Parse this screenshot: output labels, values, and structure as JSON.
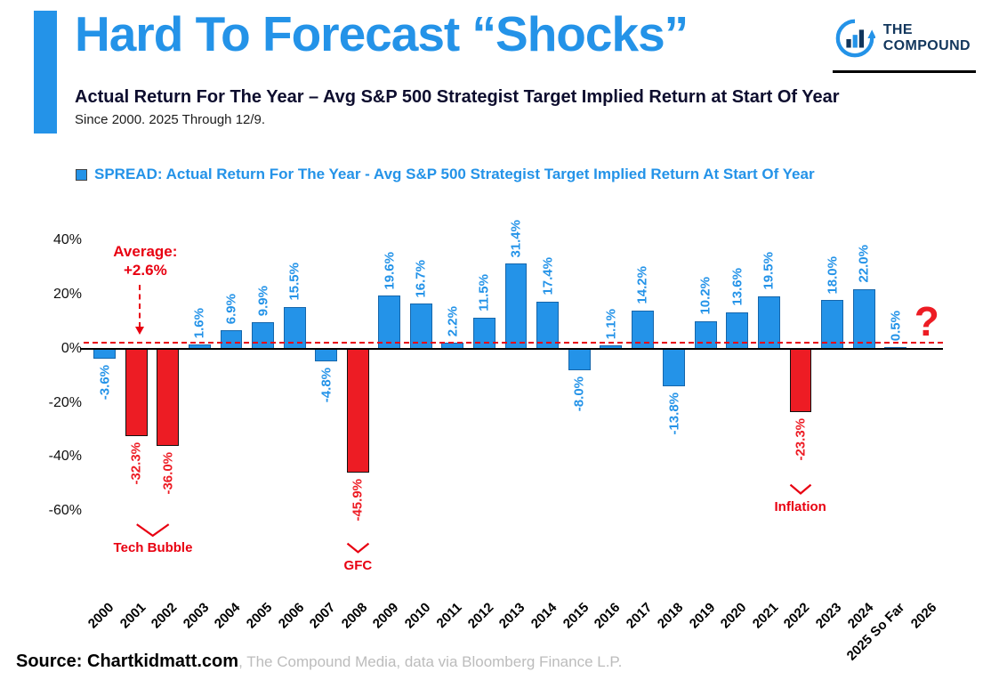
{
  "brand": {
    "blue": "#2493e8",
    "navy": "#12365c",
    "red": "#e80011",
    "barred": "#ed1c24",
    "gray": "#bcbcbc"
  },
  "header": {
    "title": "Hard To Forecast “Shocks”",
    "subtitle": "Actual Return For The Year – Avg S&P 500 Strategist Target Implied Return at Start Of Year",
    "subnote": "Since 2000. 2025 Through 12/9.",
    "logo": {
      "line1": "THE",
      "line2": "COMPOUND"
    }
  },
  "legend": {
    "label": "SPREAD: Actual Return For The Year - Avg S&P 500 Strategist Target Implied Return At Start Of Year"
  },
  "chart_data": {
    "type": "bar",
    "title": "SPREAD: Actual Return For The Year - Avg S&P 500 Strategist Target Implied Return At Start Of Year",
    "categories": [
      "2000",
      "2001",
      "2002",
      "2003",
      "2004",
      "2005",
      "2006",
      "2007",
      "2008",
      "2009",
      "2010",
      "2011",
      "2012",
      "2013",
      "2014",
      "2015",
      "2016",
      "2017",
      "2018",
      "2019",
      "2020",
      "2021",
      "2022",
      "2023",
      "2024",
      "2025 So Far",
      "2026"
    ],
    "values": [
      -3.6,
      -32.3,
      -36.0,
      1.6,
      6.9,
      9.9,
      15.5,
      -4.8,
      -45.9,
      19.6,
      16.7,
      2.2,
      11.5,
      31.4,
      17.4,
      -8.0,
      1.1,
      14.2,
      -13.8,
      10.2,
      13.6,
      19.5,
      -23.3,
      18.0,
      22.0,
      0.5,
      null
    ],
    "bar_labels": [
      "-3.6%",
      "-32.3%",
      "-36.0%",
      "1.6%",
      "6.9%",
      "9.9%",
      "15.5%",
      "-4.8%",
      "-45.9%",
      "19.6%",
      "16.7%",
      "2.2%",
      "11.5%",
      "31.4%",
      "17.4%",
      "-8.0%",
      "1.1%",
      "14.2%",
      "-13.8%",
      "10.2%",
      "13.6%",
      "19.5%",
      "-23.3%",
      "18.0%",
      "22.0%",
      "0.5%",
      "?"
    ],
    "bar_colors": [
      "blue",
      "red",
      "red",
      "blue",
      "blue",
      "blue",
      "blue",
      "blue",
      "red",
      "blue",
      "blue",
      "blue",
      "blue",
      "blue",
      "blue",
      "blue",
      "blue",
      "blue",
      "blue",
      "blue",
      "blue",
      "blue",
      "red",
      "blue",
      "blue",
      "blue",
      "none"
    ],
    "average": 2.6,
    "ylim": [
      -90,
      50
    ],
    "yticks": [
      40,
      20,
      0,
      -20,
      -40,
      -60
    ],
    "ytick_suffix": "%",
    "grid": false,
    "legend_position": "top-left",
    "xlabel": "",
    "ylabel": "",
    "annotations": {
      "average_line1": "Average:",
      "average_line2": "+2.6%",
      "tech_bubble": "Tech Bubble",
      "gfc": "GFC",
      "inflation": "Inflation",
      "future_unknown": "?"
    }
  },
  "footer": {
    "source_bold": "Source: Chartkidmatt.com",
    "source_rest": ", The Compound Media, data via Bloomberg Finance L.P."
  }
}
